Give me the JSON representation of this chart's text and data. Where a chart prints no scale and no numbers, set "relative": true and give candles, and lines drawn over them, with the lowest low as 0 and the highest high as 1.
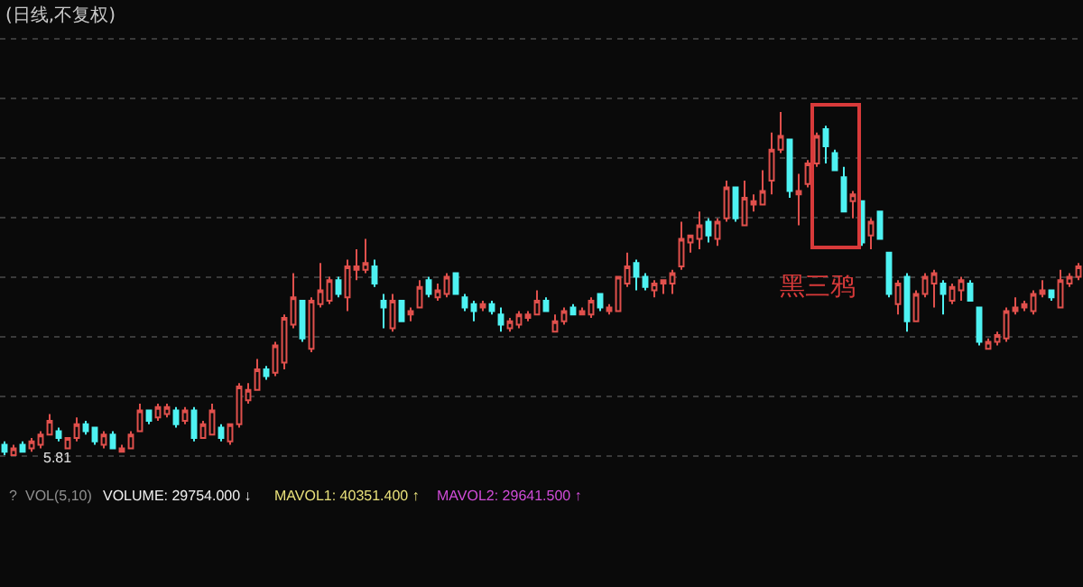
{
  "chart_data": {
    "type": "candlestick",
    "title": "(日线,不复权)",
    "relative": true,
    "grid": "y",
    "colors": [
      "#4ef2f2",
      "#e0504c",
      "#4ef2f2",
      "#e0504c",
      "#e0504c",
      "#e0504c",
      "#4ef2f2",
      "#e0504c",
      "#e0504c",
      "#4ef2f2",
      "#4ef2f2",
      "#e0504c",
      "#4ef2f2",
      "#e0504c",
      "#e0504c",
      "#e0504c",
      "#4ef2f2",
      "#e0504c",
      "#e0504c",
      "#4ef2f2",
      "#e0504c",
      "#4ef2f2",
      "#e0504c",
      "#e0504c",
      "#4ef2f2",
      "#e0504c",
      "#e0504c",
      "#e0504c",
      "#e0504c",
      "#4ef2f2",
      "#e0504c",
      "#e0504c",
      "#e0504c",
      "#4ef2f2",
      "#e0504c",
      "#e0504c",
      "#e0504c",
      "#4ef2f2",
      "#e0504c",
      "#e0504c",
      "#e0504c",
      "#4ef2f2",
      "#4ef2f2",
      "#e0504c",
      "#4ef2f2",
      "#e0504c",
      "#e0504c",
      "#4ef2f2",
      "#e0504c",
      "#e0504c",
      "#4ef2f2",
      "#4ef2f2",
      "#4ef2f2",
      "#e0504c",
      "#4ef2f2",
      "#4ef2f2",
      "#e0504c",
      "#e0504c",
      "#e0504c",
      "#e0504c",
      "#4ef2f2",
      "#e0504c",
      "#e0504c",
      "#4ef2f2",
      "#e0504c",
      "#e0504c",
      "#4ef2f2",
      "#e0504c",
      "#e0504c",
      "#e0504c",
      "#4ef2f2",
      "#4ef2f2",
      "#e0504c",
      "#e0504c",
      "#e0504c",
      "#e0504c",
      "#e0504c",
      "#e0504c",
      "#4ef2f2",
      "#e0504c",
      "#e0504c",
      "#4ef2f2",
      "#e0504c",
      "#e0504c",
      "#e0504c",
      "#e0504c",
      "#e0504c",
      "#4ef2f2",
      "#e0504c",
      "#e0504c",
      "#e0504c",
      "#4ef2f2",
      "#4ef2f2",
      "#4ef2f2",
      "#e0504c",
      "#4ef2f2",
      "#e0504c",
      "#4ef2f2",
      "#4ef2f2",
      "#e0504c",
      "#4ef2f2",
      "#e0504c",
      "#e0504c",
      "#e0504c",
      "#4ef2f2",
      "#e0504c",
      "#e0504c",
      "#4ef2f2",
      "#4ef2f2",
      "#e0504c",
      "#e0504c",
      "#e0504c",
      "#e0504c",
      "#e0504c",
      "#e0504c",
      "#e0504c",
      "#4ef2f2",
      "#e0504c",
      "#e0504c",
      "#e0504c"
    ],
    "annotations": [
      "黑三鸦",
      "5.81",
      "?",
      "VOL(5,10)",
      "VOLUME: 29754.000 ↓",
      "MAVOL1: 40351.400 ↑",
      "MAVOL2: 29641.500 ↑"
    ],
    "categories": [
      null,
      null,
      null,
      null,
      null,
      null,
      null,
      null,
      null,
      null,
      null,
      null,
      null,
      null,
      null,
      null,
      null,
      null,
      null,
      null,
      null,
      null,
      null,
      null,
      null,
      null,
      null,
      null,
      null,
      null,
      null,
      null,
      null,
      null,
      null,
      null,
      null,
      null,
      null,
      null,
      null,
      null,
      null,
      null,
      null,
      null,
      null,
      null,
      null,
      null,
      null,
      null,
      null,
      null,
      null,
      null,
      null,
      null,
      null,
      null,
      null,
      null,
      null,
      null,
      null,
      null,
      null,
      null,
      null,
      null,
      null,
      null,
      null,
      null,
      null,
      null,
      null,
      null,
      null,
      null,
      null,
      null,
      null,
      null,
      null,
      null,
      null,
      null,
      null,
      null,
      null,
      null,
      null,
      null,
      null,
      null,
      null,
      null,
      null,
      null,
      null,
      null,
      null,
      null,
      null,
      null,
      null,
      null,
      null,
      null,
      null,
      null,
      null,
      null,
      null,
      null,
      null,
      null,
      null,
      null
    ],
    "ohlc": [
      [
        0.03,
        0.04,
        0.0,
        0.01
      ],
      [
        0.0,
        0.03,
        0.0,
        0.02
      ],
      [
        0.03,
        0.04,
        0.01,
        0.01
      ],
      [
        0.02,
        0.05,
        0.01,
        0.04
      ],
      [
        0.03,
        0.07,
        0.02,
        0.06
      ],
      [
        0.06,
        0.12,
        0.06,
        0.1
      ],
      [
        0.07,
        0.08,
        0.04,
        0.05
      ],
      [
        0.02,
        0.05,
        0.02,
        0.05
      ],
      [
        0.05,
        0.11,
        0.04,
        0.09
      ],
      [
        0.09,
        0.1,
        0.06,
        0.07
      ],
      [
        0.08,
        0.08,
        0.03,
        0.04
      ],
      [
        0.03,
        0.07,
        0.02,
        0.06
      ],
      [
        0.06,
        0.07,
        0.02,
        0.02
      ],
      [
        0.01,
        0.03,
        0.01,
        0.02
      ],
      [
        0.02,
        0.07,
        0.02,
        0.06
      ],
      [
        0.07,
        0.15,
        0.07,
        0.13
      ],
      [
        0.13,
        0.13,
        0.09,
        0.1
      ],
      [
        0.11,
        0.15,
        0.1,
        0.14
      ],
      [
        0.12,
        0.15,
        0.11,
        0.14
      ],
      [
        0.13,
        0.14,
        0.08,
        0.09
      ],
      [
        0.1,
        0.14,
        0.09,
        0.13
      ],
      [
        0.13,
        0.14,
        0.04,
        0.05
      ],
      [
        0.05,
        0.1,
        0.05,
        0.09
      ],
      [
        0.06,
        0.15,
        0.06,
        0.13
      ],
      [
        0.08,
        0.09,
        0.04,
        0.05
      ],
      [
        0.04,
        0.09,
        0.03,
        0.09
      ],
      [
        0.09,
        0.21,
        0.08,
        0.2
      ],
      [
        0.16,
        0.21,
        0.15,
        0.19
      ],
      [
        0.19,
        0.28,
        0.19,
        0.25
      ],
      [
        0.25,
        0.26,
        0.22,
        0.23
      ],
      [
        0.24,
        0.33,
        0.23,
        0.32
      ],
      [
        0.27,
        0.41,
        0.25,
        0.4
      ],
      [
        0.38,
        0.53,
        0.37,
        0.46
      ],
      [
        0.45,
        0.45,
        0.33,
        0.34
      ],
      [
        0.31,
        0.46,
        0.3,
        0.45
      ],
      [
        0.44,
        0.56,
        0.43,
        0.48
      ],
      [
        0.45,
        0.52,
        0.44,
        0.51
      ],
      [
        0.51,
        0.52,
        0.46,
        0.47
      ],
      [
        0.46,
        0.57,
        0.42,
        0.55
      ],
      [
        0.54,
        0.6,
        0.51,
        0.55
      ],
      [
        0.54,
        0.63,
        0.53,
        0.56
      ],
      [
        0.55,
        0.57,
        0.49,
        0.5
      ],
      [
        0.45,
        0.47,
        0.37,
        0.43
      ],
      [
        0.37,
        0.47,
        0.36,
        0.45
      ],
      [
        0.45,
        0.45,
        0.39,
        0.39
      ],
      [
        0.41,
        0.43,
        0.39,
        0.42
      ],
      [
        0.43,
        0.51,
        0.43,
        0.49
      ],
      [
        0.51,
        0.52,
        0.46,
        0.47
      ],
      [
        0.46,
        0.5,
        0.45,
        0.48
      ],
      [
        0.47,
        0.53,
        0.46,
        0.52
      ],
      [
        0.53,
        0.53,
        0.47,
        0.47
      ],
      [
        0.46,
        0.47,
        0.42,
        0.43
      ],
      [
        0.44,
        0.45,
        0.39,
        0.42
      ],
      [
        0.43,
        0.45,
        0.42,
        0.44
      ],
      [
        0.44,
        0.45,
        0.41,
        0.42
      ],
      [
        0.41,
        0.43,
        0.36,
        0.38
      ],
      [
        0.37,
        0.4,
        0.36,
        0.39
      ],
      [
        0.38,
        0.42,
        0.37,
        0.41
      ],
      [
        0.4,
        0.42,
        0.39,
        0.41
      ],
      [
        0.41,
        0.48,
        0.41,
        0.45
      ],
      [
        0.45,
        0.46,
        0.42,
        0.42
      ],
      [
        0.36,
        0.41,
        0.36,
        0.39
      ],
      [
        0.39,
        0.43,
        0.38,
        0.42
      ],
      [
        0.43,
        0.44,
        0.41,
        0.41
      ],
      [
        0.41,
        0.43,
        0.41,
        0.42
      ],
      [
        0.41,
        0.46,
        0.4,
        0.45
      ],
      [
        0.47,
        0.47,
        0.42,
        0.43
      ],
      [
        0.42,
        0.44,
        0.41,
        0.43
      ],
      [
        0.42,
        0.52,
        0.42,
        0.52
      ],
      [
        0.5,
        0.59,
        0.49,
        0.55
      ],
      [
        0.56,
        0.57,
        0.48,
        0.52
      ],
      [
        0.52,
        0.53,
        0.48,
        0.49
      ],
      [
        0.48,
        0.51,
        0.46,
        0.5
      ],
      [
        0.5,
        0.51,
        0.47,
        0.51
      ],
      [
        0.5,
        0.54,
        0.47,
        0.53
      ],
      [
        0.55,
        0.68,
        0.54,
        0.63
      ],
      [
        0.62,
        0.64,
        0.59,
        0.64
      ],
      [
        0.63,
        0.71,
        0.6,
        0.67
      ],
      [
        0.68,
        0.69,
        0.62,
        0.64
      ],
      [
        0.63,
        0.69,
        0.61,
        0.68
      ],
      [
        0.69,
        0.8,
        0.68,
        0.78
      ],
      [
        0.78,
        0.78,
        0.68,
        0.69
      ],
      [
        0.67,
        0.8,
        0.67,
        0.75
      ],
      [
        0.73,
        0.76,
        0.71,
        0.74
      ],
      [
        0.73,
        0.83,
        0.73,
        0.77
      ],
      [
        0.8,
        0.94,
        0.76,
        0.89
      ],
      [
        0.89,
        1.0,
        0.88,
        0.93
      ],
      [
        0.92,
        0.92,
        0.75,
        0.77
      ],
      [
        0.76,
        0.82,
        0.67,
        0.77
      ],
      [
        0.79,
        0.86,
        0.78,
        0.85
      ],
      [
        0.85,
        0.94,
        0.84,
        0.93
      ],
      [
        0.95,
        0.96,
        0.85,
        0.9
      ],
      [
        0.88,
        0.89,
        0.83,
        0.83
      ],
      [
        0.81,
        0.84,
        0.71,
        0.71
      ],
      [
        0.74,
        0.77,
        0.69,
        0.76
      ],
      [
        0.74,
        0.74,
        0.61,
        0.62
      ],
      [
        0.64,
        0.69,
        0.6,
        0.68
      ],
      [
        0.71,
        0.71,
        0.63,
        0.63
      ],
      [
        0.59,
        0.59,
        0.46,
        0.47
      ],
      [
        0.44,
        0.51,
        0.41,
        0.5
      ],
      [
        0.52,
        0.53,
        0.36,
        0.39
      ],
      [
        0.39,
        0.48,
        0.39,
        0.47
      ],
      [
        0.47,
        0.53,
        0.46,
        0.52
      ],
      [
        0.5,
        0.54,
        0.43,
        0.53
      ],
      [
        0.5,
        0.51,
        0.41,
        0.47
      ],
      [
        0.45,
        0.5,
        0.44,
        0.49
      ],
      [
        0.48,
        0.52,
        0.45,
        0.51
      ],
      [
        0.5,
        0.51,
        0.45,
        0.45
      ],
      [
        0.43,
        0.43,
        0.32,
        0.33
      ],
      [
        0.31,
        0.34,
        0.31,
        0.33
      ],
      [
        0.33,
        0.36,
        0.32,
        0.35
      ],
      [
        0.34,
        0.43,
        0.33,
        0.42
      ],
      [
        0.42,
        0.46,
        0.41,
        0.43
      ],
      [
        0.43,
        0.45,
        0.42,
        0.44
      ],
      [
        0.42,
        0.48,
        0.41,
        0.47
      ],
      [
        0.47,
        0.51,
        0.46,
        0.48
      ],
      [
        0.48,
        0.48,
        0.45,
        0.46
      ],
      [
        0.43,
        0.54,
        0.43,
        0.51
      ],
      [
        0.5,
        0.53,
        0.49,
        0.52
      ],
      [
        0.52,
        0.56,
        0.51,
        0.55
      ]
    ]
  }
}
